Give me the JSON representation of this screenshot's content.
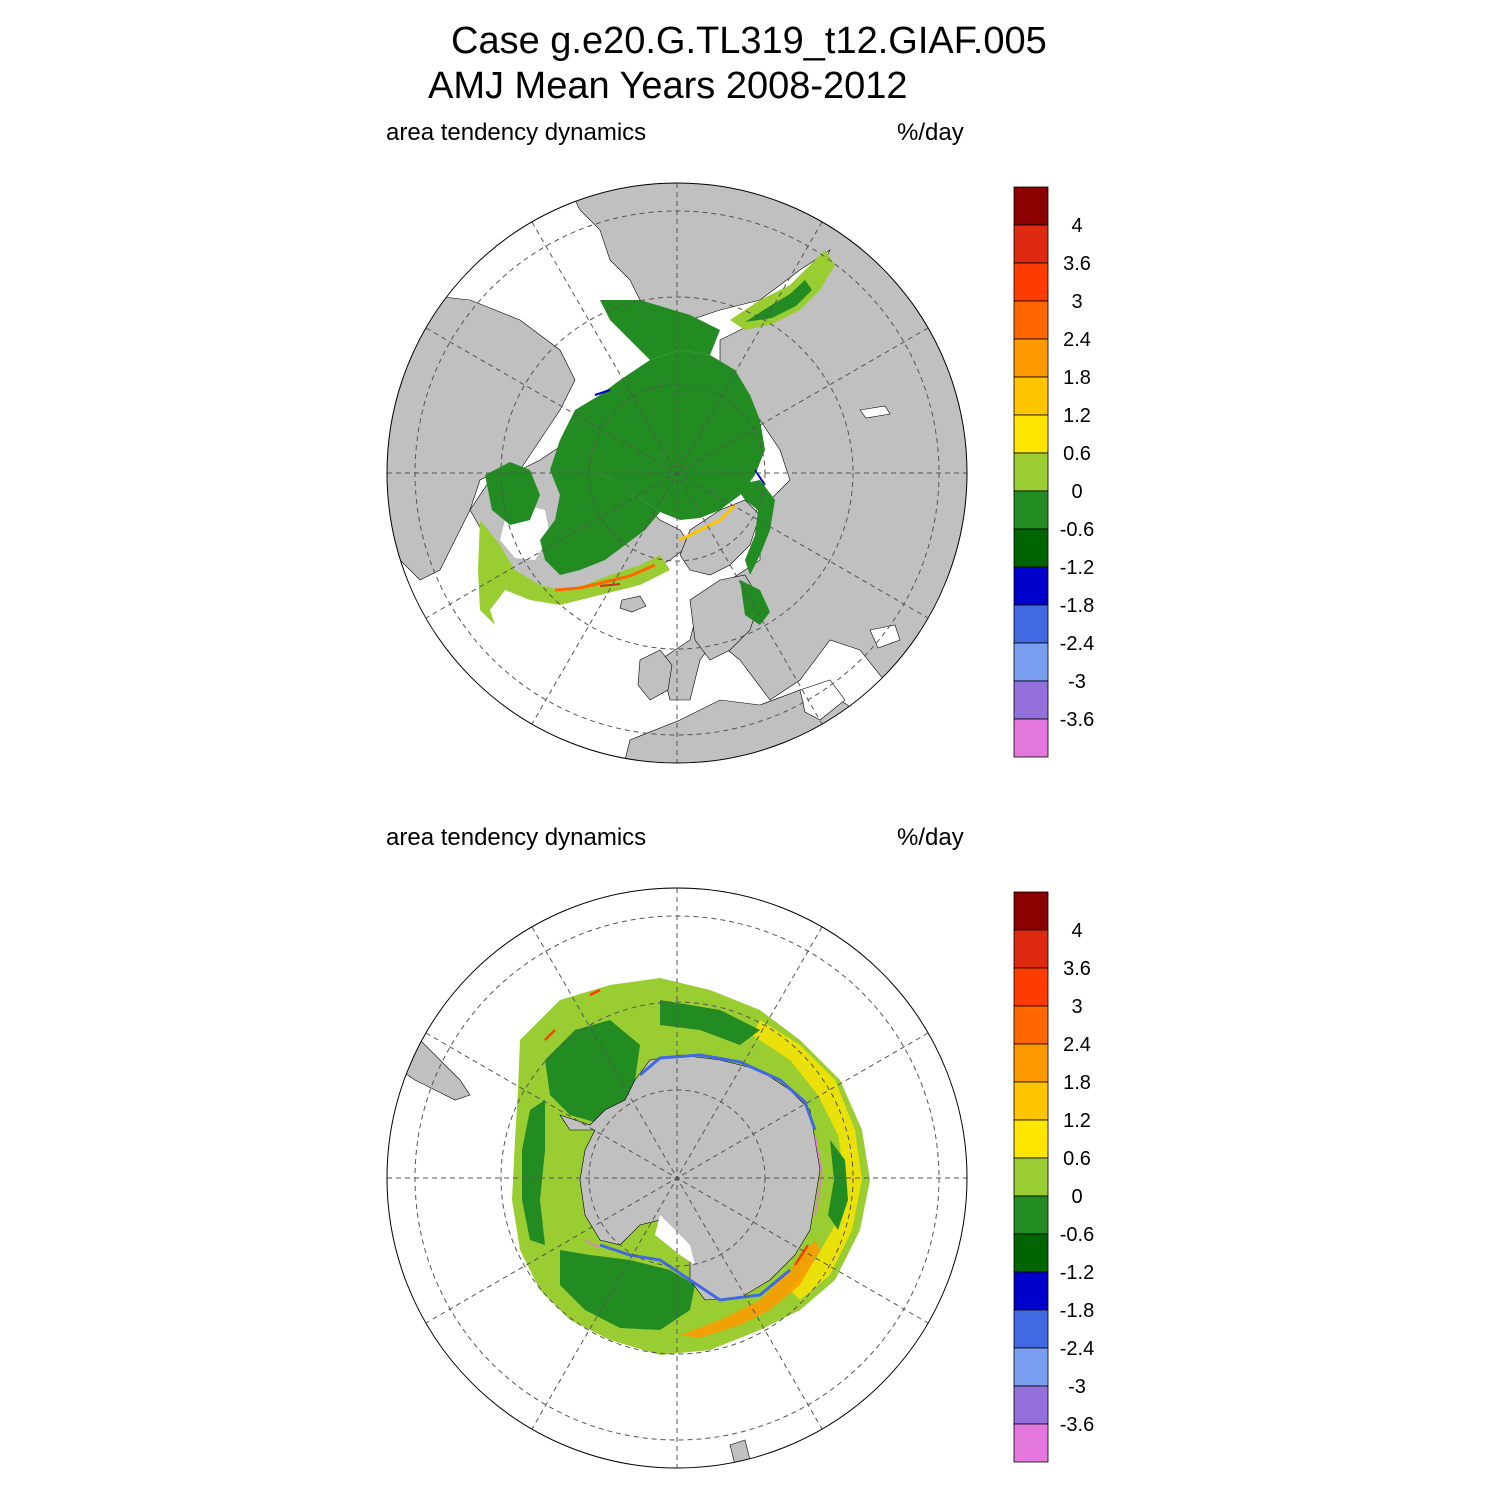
{
  "title": {
    "line1": "Case g.e20.G.TL319_t12.GIAF.005",
    "line2": "AMJ Mean   Years 2008-2012"
  },
  "panels": [
    {
      "id": "north",
      "hemisphere": "Arctic",
      "label_left": "area tendency dynamics",
      "label_right": "%/day"
    },
    {
      "id": "south",
      "hemisphere": "Antarctic",
      "label_left": "area tendency dynamics",
      "label_right": "%/day"
    }
  ],
  "colorbar": {
    "labels": [
      "4",
      "3.6",
      "3",
      "2.4",
      "1.8",
      "1.2",
      "0.6",
      "0",
      "-0.6",
      "-1.2",
      "-1.8",
      "-2.4",
      "-3",
      "-3.6"
    ],
    "colors": [
      "#8b0000",
      "#dd2a10",
      "#ff3c00",
      "#ff6600",
      "#ff9900",
      "#ffc400",
      "#ffe600",
      "#9acd32",
      "#228b22",
      "#006400",
      "#0000cd",
      "#4169e1",
      "#7b9ff0",
      "#9370db",
      "#e377de"
    ]
  },
  "colors": {
    "land": "#c0c0c0",
    "ocean": "#ffffff",
    "grid": "#555555"
  }
}
